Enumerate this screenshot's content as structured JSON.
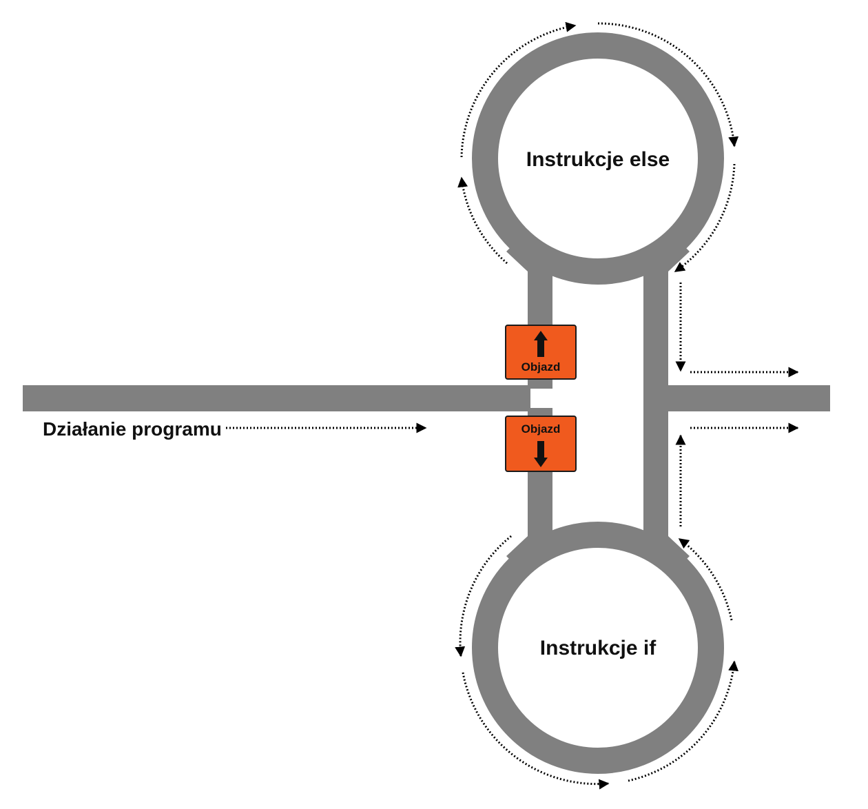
{
  "labels": {
    "else_loop": "Instrukcje else",
    "if_loop": "Instrukcje if",
    "program_flow": "Działanie programu"
  },
  "signs": {
    "upper": {
      "text": "Objazd",
      "direction": "up"
    },
    "lower": {
      "text": "Objazd",
      "direction": "down"
    }
  },
  "colors": {
    "road": "#808080",
    "sign_fill": "#f05a1e",
    "sign_border": "#1a1a1a",
    "arrow": "#000000",
    "text": "#111111",
    "background": "#ffffff"
  },
  "icons": {
    "sign_arrow_up": "up-arrow-icon",
    "sign_arrow_down": "down-arrow-icon",
    "flow_arrow": "dotted-arrow-icon"
  }
}
